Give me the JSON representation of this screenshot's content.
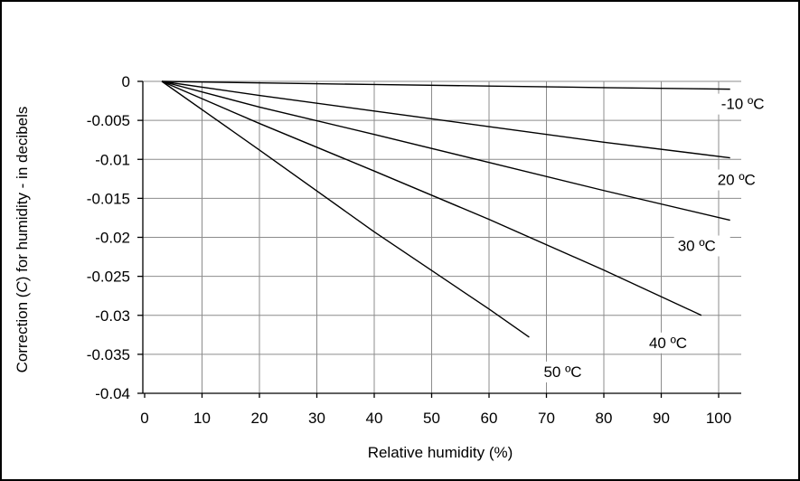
{
  "chart_data": {
    "type": "line",
    "xlabel": "Relative humidity (%)",
    "ylabel": "Correction (C) for humidity - in decibels",
    "xlim": [
      0,
      100
    ],
    "ylim": [
      -0.04,
      0
    ],
    "xticks": [
      "0",
      "10",
      "20",
      "30",
      "40",
      "50",
      "60",
      "70",
      "80",
      "90",
      "100"
    ],
    "yticks": [
      "0",
      "-0.005",
      "-0.01",
      "-0.015",
      "-0.02",
      "-0.025",
      "-0.03",
      "-0.035",
      "-0.04"
    ],
    "grid": true,
    "series": [
      {
        "name": "-10 ºC",
        "x": [
          3,
          20,
          40,
          60,
          80,
          102
        ],
        "y": [
          0,
          -0.0002,
          -0.0004,
          -0.0006,
          -0.0008,
          -0.001
        ]
      },
      {
        "name": "20 ºC",
        "x": [
          3,
          20,
          40,
          60,
          80,
          102
        ],
        "y": [
          0,
          -0.0018,
          -0.0038,
          -0.0058,
          -0.0078,
          -0.0098
        ]
      },
      {
        "name": "30 ºC",
        "x": [
          3,
          20,
          40,
          60,
          80,
          102
        ],
        "y": [
          0,
          -0.0033,
          -0.0068,
          -0.0104,
          -0.014,
          -0.0178
        ]
      },
      {
        "name": "40 ºC",
        "x": [
          3,
          20,
          40,
          60,
          80,
          97
        ],
        "y": [
          0,
          -0.0054,
          -0.0115,
          -0.0177,
          -0.0242,
          -0.03
        ]
      },
      {
        "name": "50 ºC",
        "x": [
          3,
          20,
          40,
          60,
          67
        ],
        "y": [
          0,
          -0.0088,
          -0.0193,
          -0.0292,
          -0.0328
        ]
      }
    ]
  }
}
